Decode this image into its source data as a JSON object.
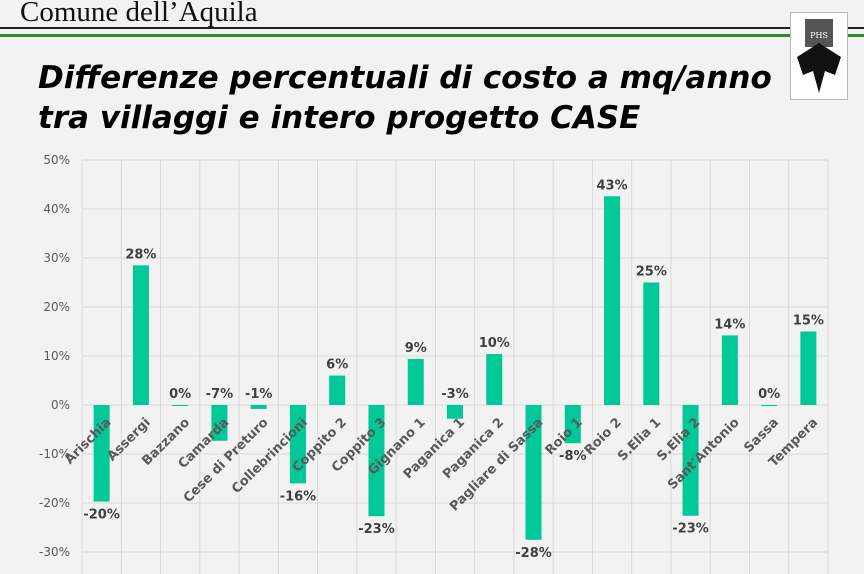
{
  "header": {
    "org": "Comune dell’Aquila",
    "logo_text": "PHS"
  },
  "title_lines": [
    "Differenze percentuali di costo a mq/anno",
    "tra villaggi e intero progetto CASE"
  ],
  "colors": {
    "bar": "#00c896",
    "header_line_green": "#2e8b2e"
  },
  "chart_data": {
    "type": "bar",
    "title": "Differenze percentuali di costo a mq/anno tra villaggi e intero progetto CASE",
    "categories": [
      "Arischia",
      "Assergi",
      "Bazzano",
      "Camarda",
      "Cese di Preturo",
      "Collebrincioni",
      "Coppito 2",
      "Coppito 3",
      "Gignano 1",
      "Paganica 1",
      "Paganica 2",
      "Pagliare di Sassa",
      "Roio 1",
      "Roio 2",
      "S.Elia 1",
      "S.Elia 2",
      "Sant'Antonio",
      "Sassa",
      "Tempera"
    ],
    "values": [
      -19.7,
      28.5,
      0,
      -7.3,
      -0.8,
      -16,
      6,
      -22.7,
      9.4,
      -2.8,
      10.4,
      -27.5,
      -7.8,
      42.6,
      25,
      -22.6,
      14.2,
      -0.2,
      15
    ],
    "labels": [
      "-20%",
      "28%",
      "0%",
      "-7%",
      "-1%",
      "-16%",
      "6%",
      "-23%",
      "9%",
      "-3%",
      "10%",
      "-28%",
      "-8%",
      "43%",
      "25%",
      "-23%",
      "14%",
      "0%",
      "15%"
    ],
    "ylim": [
      -35,
      50
    ],
    "yticks": [
      "50%",
      "40%",
      "30%",
      "20%",
      "10%",
      "0%",
      "-10%",
      "-20%",
      "-30%"
    ],
    "ytick_values": [
      50,
      40,
      30,
      20,
      10,
      0,
      -10,
      -20,
      -30
    ],
    "grid": true,
    "legend": "none"
  }
}
